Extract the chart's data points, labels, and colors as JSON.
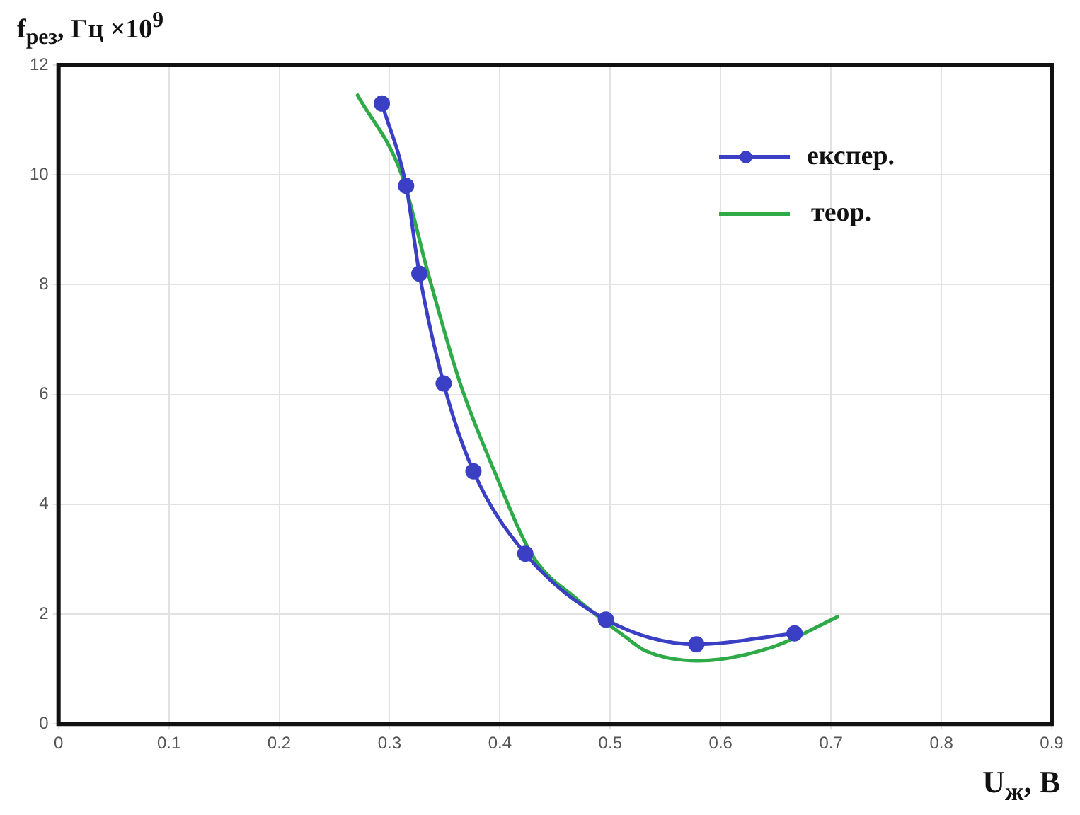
{
  "chart_data": {
    "type": "line",
    "xlabel": "U$_{ж}$, В",
    "ylabel": "f$_{рез}$, Гц ×10$^{9}$",
    "xlim": [
      0,
      0.9
    ],
    "xticks": [
      0,
      0.1,
      0.2,
      0.3,
      0.4,
      0.5,
      0.6,
      0.7,
      0.8,
      0.9
    ],
    "ylim": [
      0,
      12
    ],
    "yticks": [
      0,
      2,
      4,
      6,
      8,
      10,
      12
    ],
    "grid": true,
    "legend": "top right",
    "series": [
      {
        "name": "експер.",
        "color": "#3a3fc4",
        "marker": "circle",
        "x": [
          0.293,
          0.315,
          0.327,
          0.349,
          0.376,
          0.423,
          0.496,
          0.578,
          0.667
        ],
        "values": [
          11.3,
          9.8,
          8.2,
          6.2,
          4.6,
          3.1,
          1.9,
          1.45,
          1.65
        ]
      },
      {
        "name": "теор.",
        "color": "#2eaa48",
        "marker": "none",
        "x": [
          0.271,
          0.311,
          0.335,
          0.364,
          0.395,
          0.43,
          0.47,
          0.514,
          0.532,
          0.58,
          0.647,
          0.706
        ],
        "values": [
          11.45,
          10,
          8.2,
          6.2,
          4.6,
          3.05,
          2.27,
          1.58,
          1.33,
          1.15,
          1.4,
          1.95
        ]
      }
    ]
  }
}
